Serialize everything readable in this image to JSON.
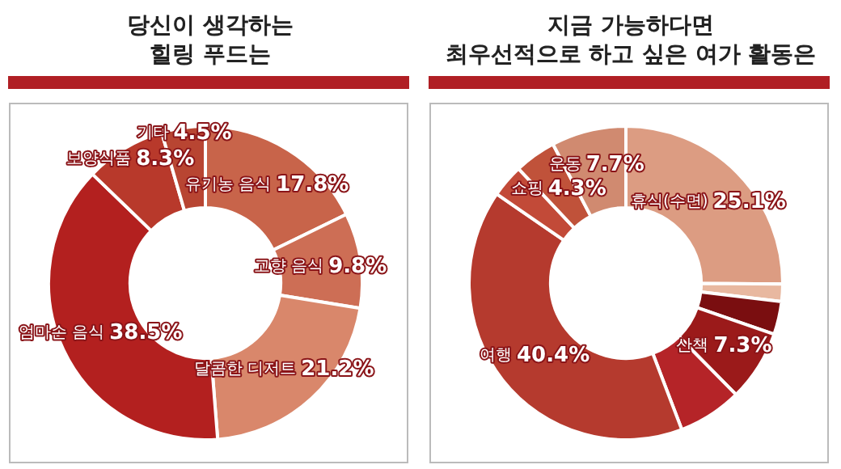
{
  "chart_data": [
    {
      "type": "donut",
      "title": "당신이 생각하는\n힐링 푸드는",
      "categories": [
        "유기농 음식",
        "고향 음식",
        "달콤한 디저트",
        "엄마손 음식",
        "보양식품",
        "기타"
      ],
      "values": [
        17.8,
        9.8,
        21.2,
        38.5,
        8.3,
        4.5
      ],
      "value_labels": [
        "17.8%",
        "9.8%",
        "21.2%",
        "38.5%",
        "8.3%",
        "4.5%"
      ],
      "colors": [
        "#c8644a",
        "#cd6e55",
        "#d9876b",
        "#b3201f",
        "#b8392b",
        "#b84532"
      ]
    },
    {
      "type": "donut",
      "title": "지금 가능하다면\n최우선적으로 하고 싶은 여가 활동은",
      "categories": [
        "휴식(수면)",
        null,
        null,
        "산책",
        null,
        "여행",
        null,
        "쇼핑",
        "운동"
      ],
      "values": [
        25.1,
        1.8,
        3.4,
        7.3,
        6.6,
        40.4,
        3.4,
        4.3,
        7.7
      ],
      "value_labels": [
        "25.1%",
        null,
        null,
        "7.3%",
        null,
        "40.4%",
        null,
        "4.3%",
        "7.7%"
      ],
      "colors": [
        "#dc9c82",
        "#e8b8a0",
        "#7a0e10",
        "#9b1a1a",
        "#b52428",
        "#b53a2e",
        "#c24a38",
        "#c0523a",
        "#d08a70"
      ]
    }
  ]
}
